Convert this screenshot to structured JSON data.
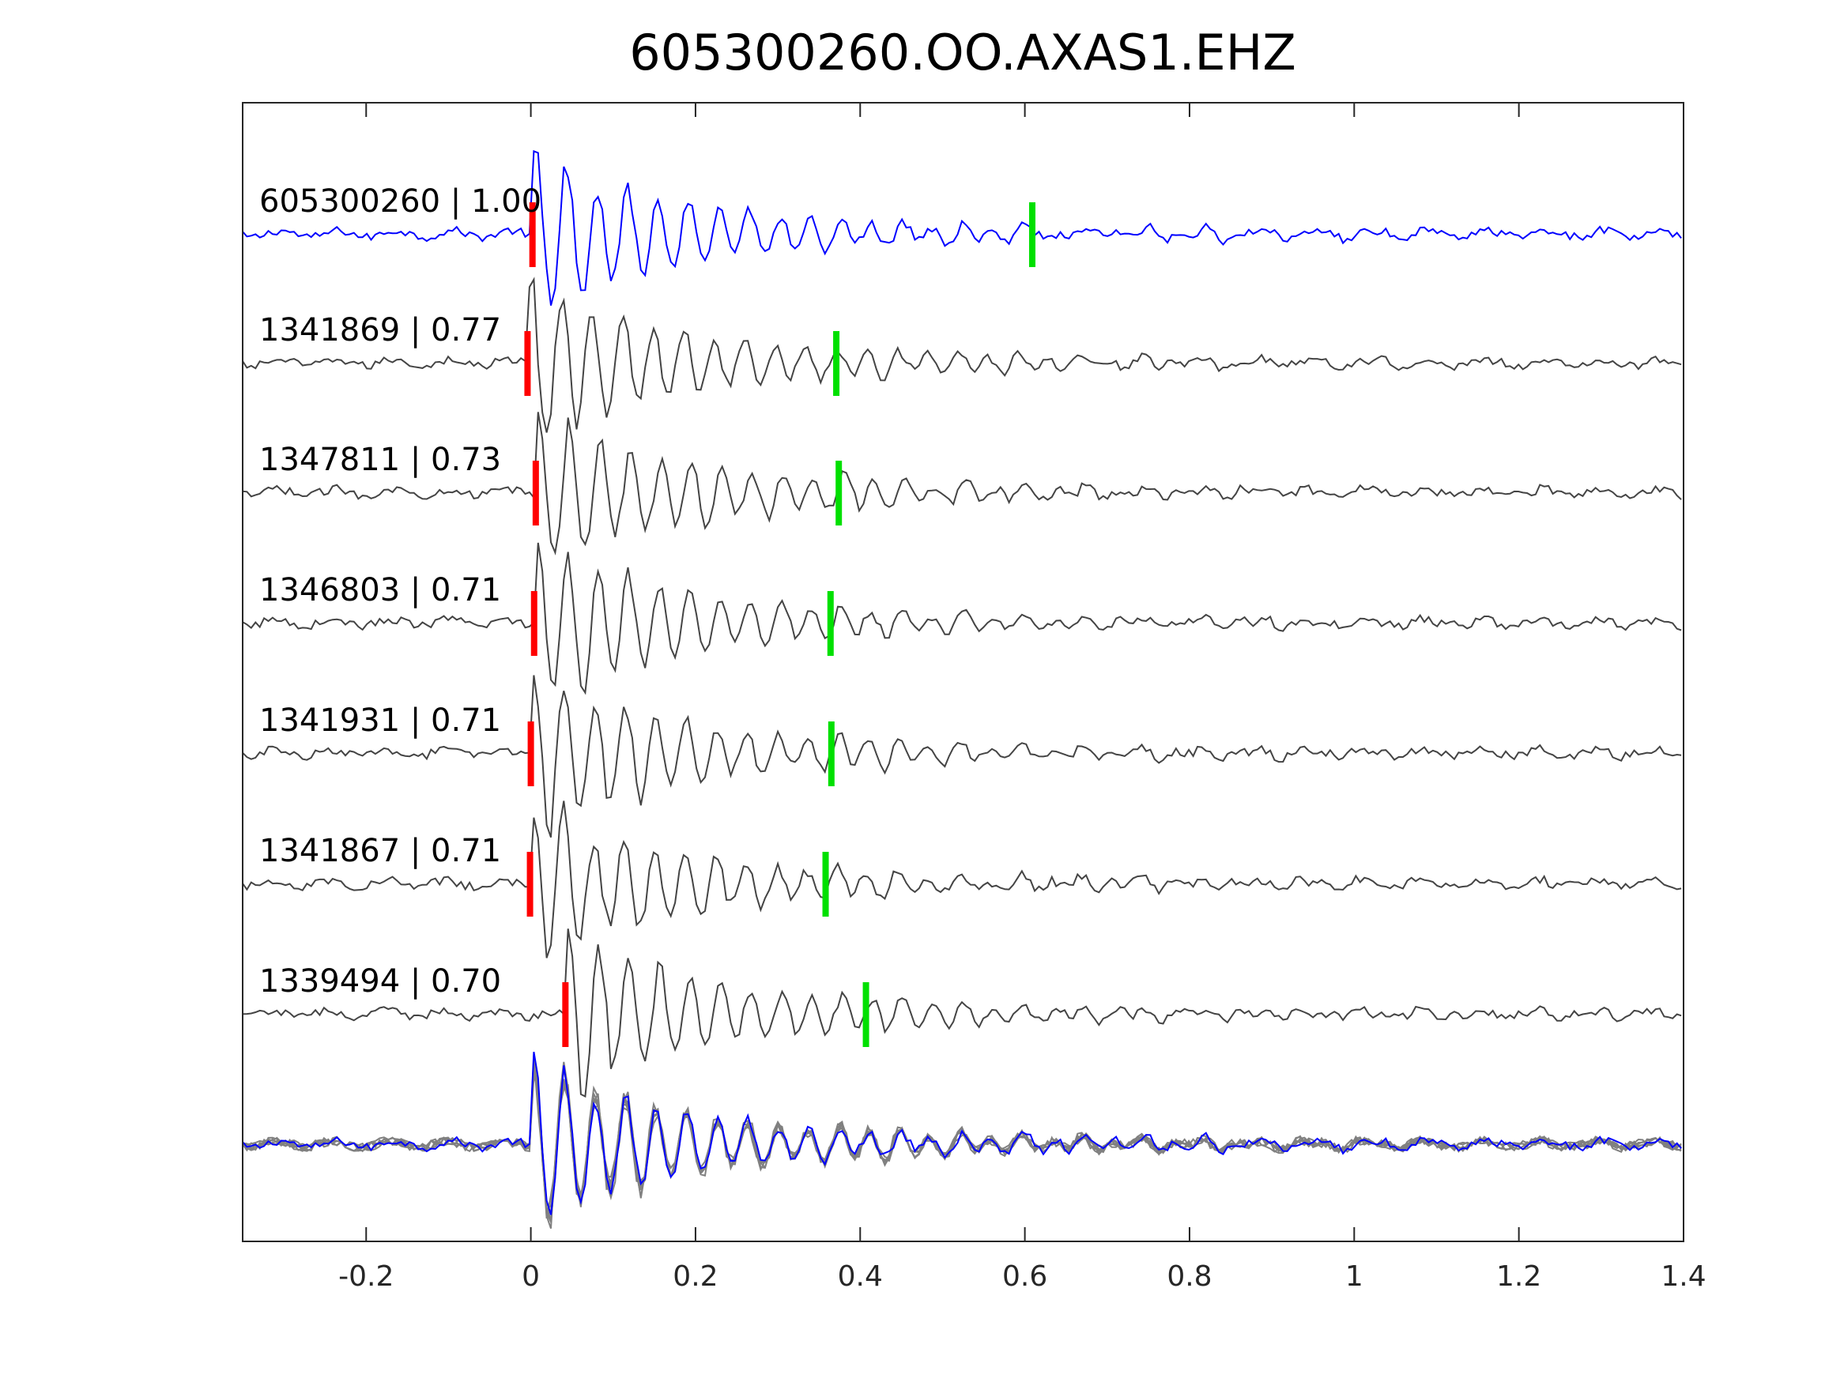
{
  "chart_data": {
    "type": "line",
    "title": "605300260.OO.AXAS1.EHZ",
    "xlabel": "",
    "ylabel": "",
    "xlim": [
      -0.35,
      1.4
    ],
    "xticks": [
      -0.2,
      0,
      0.2,
      0.4,
      0.6,
      0.8,
      1,
      1.2,
      1.4
    ],
    "xtick_labels": [
      "-0.2",
      "0",
      "0.2",
      "0.4",
      "0.6",
      "0.8",
      "1",
      "1.2",
      "1.4"
    ],
    "grid": false,
    "colors": {
      "template": "#0000ff",
      "neighbor": "#444444",
      "stack": "#808080",
      "p_pick": "#ff0000",
      "s_pick": "#00e000"
    },
    "traces": [
      {
        "label": "605300260 | 1.00",
        "id": "605300260",
        "cc": 1.0,
        "p_pick": 0.002,
        "s_pick": 0.609,
        "color": "#0000ff"
      },
      {
        "label": "1341869 | 0.77",
        "id": "1341869",
        "cc": 0.77,
        "p_pick": -0.004,
        "s_pick": 0.371,
        "color": "#444444"
      },
      {
        "label": "1347811 | 0.73",
        "id": "1347811",
        "cc": 0.73,
        "p_pick": 0.006,
        "s_pick": 0.374,
        "color": "#444444"
      },
      {
        "label": "1346803 | 0.71",
        "id": "1346803",
        "cc": 0.71,
        "p_pick": 0.004,
        "s_pick": 0.364,
        "color": "#444444"
      },
      {
        "label": "1341931 | 0.71",
        "id": "1341931",
        "cc": 0.71,
        "p_pick": 0.0,
        "s_pick": 0.365,
        "color": "#444444"
      },
      {
        "label": "1341867 | 0.71",
        "id": "1341867",
        "cc": 0.71,
        "p_pick": -0.001,
        "s_pick": 0.358,
        "color": "#444444"
      },
      {
        "label": "1339494 | 0.70",
        "id": "1339494",
        "cc": 0.7,
        "p_pick": 0.042,
        "s_pick": 0.407,
        "color": "#444444"
      }
    ],
    "stack": {
      "description_shown": false,
      "color": "#808080",
      "template_color": "#0000ff"
    }
  }
}
